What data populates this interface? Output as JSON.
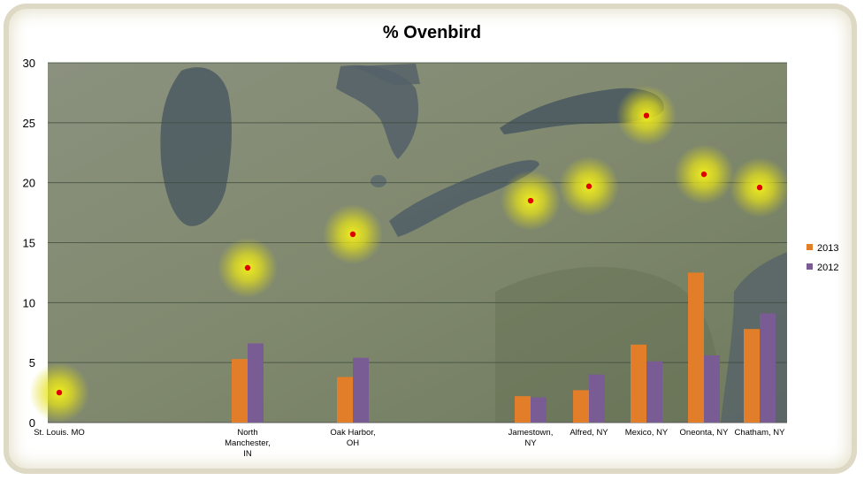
{
  "chart_data": {
    "type": "bar",
    "title": "% Ovenbird",
    "xlabel": "",
    "ylabel": "",
    "ylim": [
      0,
      30
    ],
    "yticks": [
      0,
      5,
      10,
      15,
      20,
      25,
      30
    ],
    "grid": true,
    "legend_position": "right",
    "categories": [
      [
        "St. Louis. MO"
      ],
      [
        "North",
        "Manchester,",
        "IN"
      ],
      [
        "Oak Harbor,",
        "OH"
      ],
      [
        "Jamestown,",
        "NY"
      ],
      [
        "Alfred, NY"
      ],
      [
        "Mexico, NY"
      ],
      [
        "Oneonta, NY"
      ],
      [
        "Chatham, NY"
      ]
    ],
    "series": [
      {
        "name": "2013",
        "color": "#e27d2a",
        "values": [
          0,
          5.3,
          3.8,
          2.2,
          2.7,
          6.5,
          12.5,
          7.8
        ]
      },
      {
        "name": "2012",
        "color": "#7a5c94",
        "values": [
          0,
          6.6,
          5.4,
          2.1,
          4.0,
          5.1,
          5.6,
          9.1
        ]
      }
    ],
    "background": "satellite map of the Great Lakes and northeastern United States",
    "markers": {
      "color": "#e00000",
      "glow_color": "#f2ee1a",
      "values": [
        2.5,
        12.9,
        15.7,
        18.5,
        19.7,
        25.6,
        20.7,
        19.6
      ]
    }
  }
}
